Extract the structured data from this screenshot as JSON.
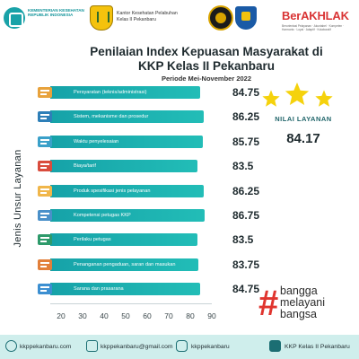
{
  "header": {
    "kemenkes_text": "KEMENTERIAN KESEHATAN REPUBLIK INDONESIA",
    "kkp_text_line1": "Kantor Kesehatan Pelabuhan",
    "kkp_text_line2": "Kelas II Pekanbaru",
    "berakhlak_word_main": "Ber",
    "berakhlak_word_accent": "AKHLAK",
    "berakhlak_tagline": "Berorientasi Pelayanan · Akuntabel · Kompeten · Harmonis · Loyal · Adaptif · Kolaboratif"
  },
  "title_line1": "Penilaian Index Kepuasan Masyarakat di",
  "title_line2": "KKP Kelas II Pekanbaru",
  "subtitle": "Periode Mei-November 2022",
  "summary": {
    "label": "NILAI LAYANAN",
    "value": "84.17",
    "stars": 3
  },
  "hashtag": {
    "symbol": "#",
    "line1": "bangga",
    "line2": "melayani",
    "line3": "bangsa"
  },
  "footer": {
    "website": "kkppekanbaru.com",
    "email": "kkppekanbaru@gmail.com",
    "instagram": "kkppekanbaru",
    "youtube": "KKP Kelas II Pekanbaru"
  },
  "chart_data": {
    "type": "bar",
    "orientation": "horizontal",
    "title": "Penilaian Index Kepuasan Masyarakat di KKP Kelas II Pekanbaru",
    "subtitle": "Periode Mei-November 2022",
    "ylabel": "Jenis Unsur Layanan",
    "xlabel": "",
    "categories": [
      "Persyaratan (teknis/administrasi)",
      "Sistem, mekanisme dan prosedur",
      "Waktu penyelesaian",
      "Biaya/tarif",
      "Produk spesifikasi jenis pelayanan",
      "Kompetensi petugas KKP",
      "Perilaku petugas",
      "Penanganan pengaduan, saran dan masukan",
      "Sarana dan prasarana"
    ],
    "values": [
      84.75,
      86.25,
      85.75,
      83.5,
      86.25,
      86.75,
      83.5,
      83.75,
      84.75
    ],
    "value_labels": [
      "84.75",
      "86.25",
      "85.75",
      "83.5",
      "86.25",
      "86.75",
      "83.5",
      "83.75",
      "84.75"
    ],
    "xticks": [
      20,
      30,
      40,
      50,
      60,
      70,
      80,
      90
    ],
    "xlim": [
      15,
      90
    ],
    "bar_color": "#16a2a8",
    "grid": false,
    "legend": "none"
  }
}
